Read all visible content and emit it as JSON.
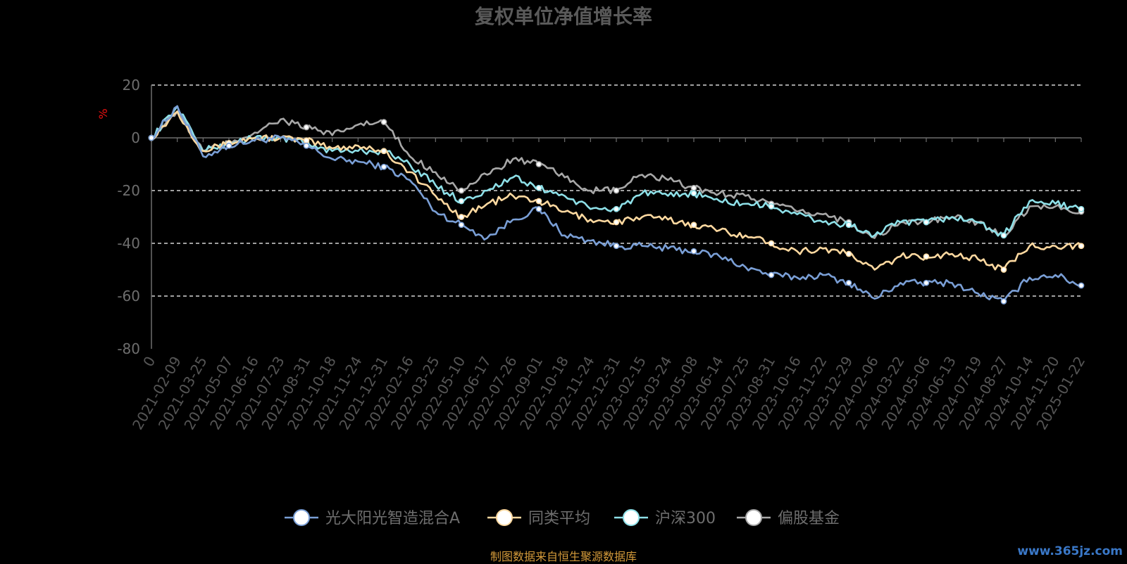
{
  "chart_data": {
    "type": "line",
    "title": "复权单位净值增长率",
    "ylabel": "%",
    "ylim": [
      -80,
      20
    ],
    "yticks": [
      20,
      0,
      -20,
      -40,
      -60,
      -80
    ],
    "x_tick_labels": [
      "0",
      "2021-02-09",
      "2021-03-25",
      "2021-05-07",
      "2021-06-16",
      "2021-07-23",
      "2021-08-31",
      "2021-10-18",
      "2021-11-24",
      "2021-12-31",
      "2022-02-16",
      "2022-03-25",
      "2022-05-10",
      "2022-06-17",
      "2022-07-26",
      "2022-09-01",
      "2022-10-18",
      "2022-11-24",
      "2022-12-31",
      "2023-02-15",
      "2023-03-24",
      "2023-05-08",
      "2023-06-14",
      "2023-07-25",
      "2023-08-31",
      "2023-10-16",
      "2023-11-22",
      "2023-12-29",
      "2024-02-06",
      "2024-03-22",
      "2024-05-06",
      "2024-06-13",
      "2024-07-19",
      "2024-08-27",
      "2024-10-14",
      "2024-11-20",
      "2025-01-22"
    ],
    "grid": true,
    "legend_position": "bottom",
    "series": [
      {
        "name": "光大阳光智造混合A",
        "color": "#7a9fd6",
        "values": [
          0,
          12,
          -7,
          -3,
          -1,
          0,
          -3,
          -8,
          -9,
          -11,
          -16,
          -28,
          -33,
          -38,
          -31,
          -27,
          -37,
          -39,
          -41,
          -41,
          -42,
          -43,
          -45,
          -49,
          -52,
          -53,
          -52,
          -55,
          -61,
          -55,
          -55,
          -55,
          -59,
          -62,
          -53,
          -52,
          -56
        ]
      },
      {
        "name": "同类平均",
        "color": "#ffd9a0",
        "values": [
          0,
          10,
          -5,
          -2,
          0,
          0,
          -1,
          -4,
          -3,
          -5,
          -13,
          -22,
          -30,
          -25,
          -22,
          -24,
          -28,
          -31,
          -32,
          -30,
          -31,
          -33,
          -35,
          -37,
          -40,
          -43,
          -42,
          -44,
          -50,
          -45,
          -45,
          -44,
          -46,
          -50,
          -41,
          -41,
          -41
        ]
      },
      {
        "name": "沪深300",
        "color": "#8ee0e8",
        "values": [
          0,
          12,
          -5,
          -2,
          0,
          0,
          -2,
          -5,
          -5,
          -5,
          -10,
          -18,
          -24,
          -20,
          -15,
          -19,
          -22,
          -27,
          -27,
          -21,
          -22,
          -21,
          -24,
          -25,
          -26,
          -29,
          -32,
          -33,
          -37,
          -32,
          -32,
          -30,
          -32,
          -37,
          -24,
          -25,
          -27
        ]
      },
      {
        "name": "偏股基金",
        "color": "#a8a8a8",
        "values": [
          0,
          10,
          -5,
          -2,
          2,
          7,
          4,
          1,
          5,
          6,
          -7,
          -13,
          -20,
          -14,
          -8,
          -10,
          -15,
          -20,
          -20,
          -14,
          -16,
          -19,
          -21,
          -22,
          -25,
          -28,
          -29,
          -32,
          -38,
          -32,
          -32,
          -30,
          -32,
          -37,
          -26,
          -26,
          -28
        ]
      }
    ]
  },
  "footer": {
    "source_text": "制图数据来自恒生聚源数据库",
    "watermark": "www.365jz.com"
  }
}
